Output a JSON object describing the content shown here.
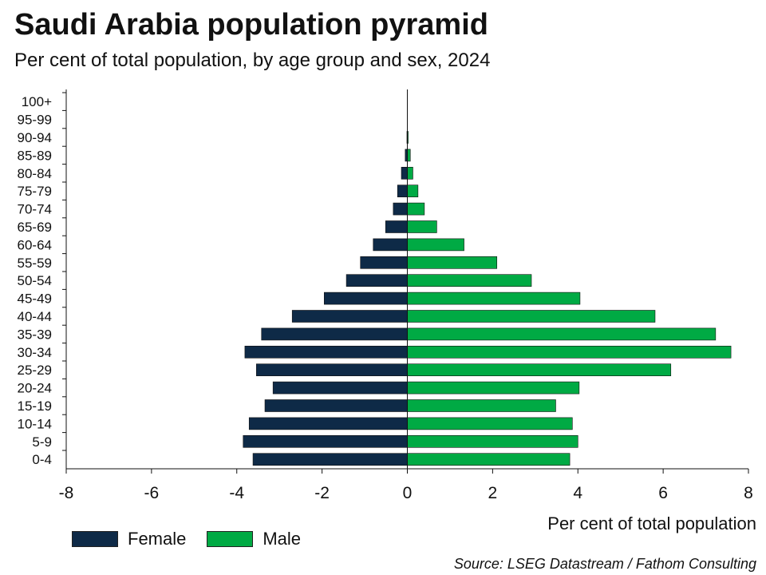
{
  "header": {
    "title": "Saudi Arabia population pyramid",
    "subtitle": "Per cent of total population, by age group and sex, 2024"
  },
  "footer": {
    "source": "Source: LSEG Datastream / Fathom Consulting"
  },
  "colors": {
    "female": "#0e2a47",
    "male": "#00aa44"
  },
  "chart_data": {
    "type": "bar",
    "orientation": "horizontal",
    "title": "Saudi Arabia population pyramid",
    "subtitle": "Per cent of total population, by age group and sex, 2024",
    "xlabel": "Per cent of total population",
    "ylabel": "",
    "xlim": [
      -8,
      8
    ],
    "xticks": [
      -8,
      -6,
      -4,
      -2,
      0,
      2,
      4,
      6,
      8
    ],
    "legend_position": "bottom-left",
    "grid": false,
    "categories": [
      "100+",
      "95-99",
      "90-94",
      "85-89",
      "80-84",
      "75-79",
      "70-74",
      "65-69",
      "60-64",
      "55-59",
      "50-54",
      "45-49",
      "40-44",
      "35-39",
      "30-34",
      "25-29",
      "20-24",
      "15-19",
      "10-14",
      "5-9",
      "0-4"
    ],
    "series": [
      {
        "name": "Female",
        "values": [
          0,
          0,
          -0.01,
          -0.05,
          -0.14,
          -0.23,
          -0.33,
          -0.51,
          -0.8,
          -1.1,
          -1.43,
          -1.95,
          -2.7,
          -3.42,
          -3.81,
          -3.54,
          -3.15,
          -3.34,
          -3.71,
          -3.85,
          -3.62
        ]
      },
      {
        "name": "Male",
        "values": [
          0,
          0,
          0.02,
          0.07,
          0.13,
          0.25,
          0.4,
          0.69,
          1.33,
          2.1,
          2.91,
          4.05,
          5.81,
          7.23,
          7.59,
          6.18,
          4.03,
          3.48,
          3.87,
          4.0,
          3.81
        ]
      }
    ]
  }
}
